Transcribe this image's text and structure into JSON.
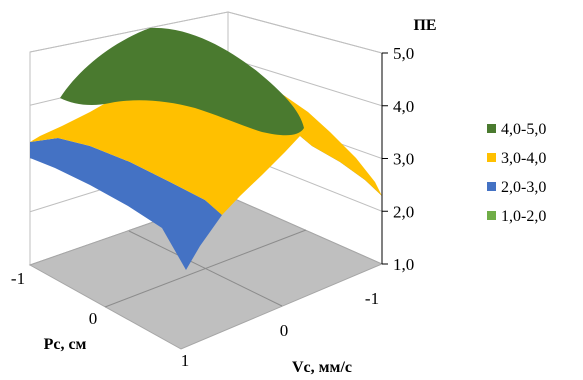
{
  "chart_data": {
    "type": "surface",
    "title": "",
    "zlabel": "ПЕ",
    "xlabel": "Рс, см",
    "ylabel": "Vc, мм/с",
    "x_ticks": [
      "-1",
      "0",
      "1"
    ],
    "y_ticks": [
      "-1",
      "0",
      "1"
    ],
    "z_ticks": [
      "1,0",
      "2,0",
      "3,0",
      "4,0",
      "5,0"
    ],
    "zlim": [
      1.0,
      5.0
    ],
    "legend_position": "right",
    "bands": [
      {
        "name": "4,0-5,0",
        "range": [
          4.0,
          5.0
        ],
        "color": "#4a7a2f"
      },
      {
        "name": "3,0-4,0",
        "range": [
          3.0,
          4.0
        ],
        "color": "#ffc000"
      },
      {
        "name": "2,0-3,0",
        "range": [
          2.0,
          3.0
        ],
        "color": "#4472c4"
      },
      {
        "name": "1,0-2,0",
        "range": [
          1.0,
          2.0
        ],
        "color": "#70ad47"
      }
    ],
    "surface_grid": {
      "pc_values": [
        -1,
        0,
        1
      ],
      "vc_values": [
        -1,
        0,
        1
      ],
      "z": [
        [
          2.7,
          3.6,
          3.2
        ],
        [
          3.6,
          4.5,
          3.8
        ],
        [
          2.3,
          3.8,
          1.3
        ]
      ]
    }
  }
}
